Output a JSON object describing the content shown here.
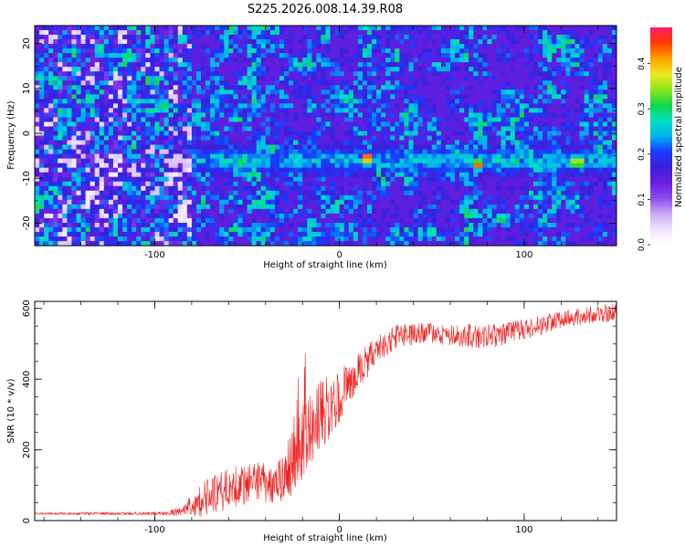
{
  "title": "S225.2026.008.14.39.R08",
  "chart_data": [
    {
      "type": "heatmap",
      "xlabel": "Height of straight line (km)",
      "ylabel": "Frequency (Hz)",
      "xlim": [
        -165,
        150
      ],
      "ylim": [
        -25,
        24
      ],
      "x_ticks": [
        -100,
        0,
        100
      ],
      "y_ticks": [
        -20,
        -10,
        0,
        10,
        20
      ],
      "colorbar": {
        "label": "Normalized spectral amplitude",
        "range": [
          0,
          0.48
        ],
        "ticks": [
          0.0,
          0.1,
          0.2,
          0.3,
          0.4
        ],
        "tick_labels": [
          "0.0",
          "0.1",
          "0.2",
          "0.3",
          "0.4"
        ]
      },
      "signal_band": {
        "frequency_hz": -6,
        "starts_km": -80,
        "hotspots": [
          {
            "x": -37,
            "y": -3.5,
            "amp": 0.28
          },
          {
            "x": -43,
            "y": -3.5,
            "amp": 0.22
          },
          {
            "x": 15,
            "y": -5.5,
            "amp": 0.45
          },
          {
            "x": 75,
            "y": -7,
            "amp": 0.42
          },
          {
            "x": 130,
            "y": -6.5,
            "amp": 0.35
          },
          {
            "x": 126,
            "y": -6.5,
            "amp": 0.3
          },
          {
            "x": 96,
            "y": -6,
            "amp": 0.24
          }
        ]
      }
    },
    {
      "type": "line",
      "xlabel": "Height of straight line (km)",
      "ylabel": "SNR (10 * v/v)",
      "xlim": [
        -165,
        150
      ],
      "ylim": [
        0,
        620
      ],
      "x_ticks": [
        -100,
        0,
        100
      ],
      "y_ticks": [
        0,
        200,
        400,
        600
      ],
      "series": [
        {
          "name": "SNR",
          "color": "#ee2222",
          "profile_x": [
            -165,
            -95,
            -85,
            -75,
            -60,
            -45,
            -35,
            -28,
            -18,
            -10,
            0,
            10,
            20,
            30,
            50,
            80,
            100,
            120,
            150
          ],
          "profile_y": [
            20,
            20,
            25,
            60,
            90,
            110,
            110,
            150,
            230,
            300,
            350,
            420,
            480,
            520,
            530,
            520,
            540,
            570,
            590
          ],
          "noise_amplitude": [
            3,
            5,
            15,
            50,
            60,
            60,
            60,
            90,
            120,
            100,
            80,
            60,
            40,
            35,
            30,
            35,
            30,
            25,
            25
          ]
        }
      ]
    }
  ],
  "colors": {
    "background": "#ffffff",
    "axis": "#000000",
    "snr_line": "#ee2222",
    "colormap": [
      "#ffffff",
      "#f0e4ff",
      "#c9a8f5",
      "#8a4cf0",
      "#6a1fe0",
      "#3a1fd8",
      "#1a3bff",
      "#00b4f0",
      "#00e0c0",
      "#10d84a",
      "#8ee61a",
      "#f0e820",
      "#ffa000",
      "#ff3c00",
      "#ff1a6a"
    ]
  }
}
